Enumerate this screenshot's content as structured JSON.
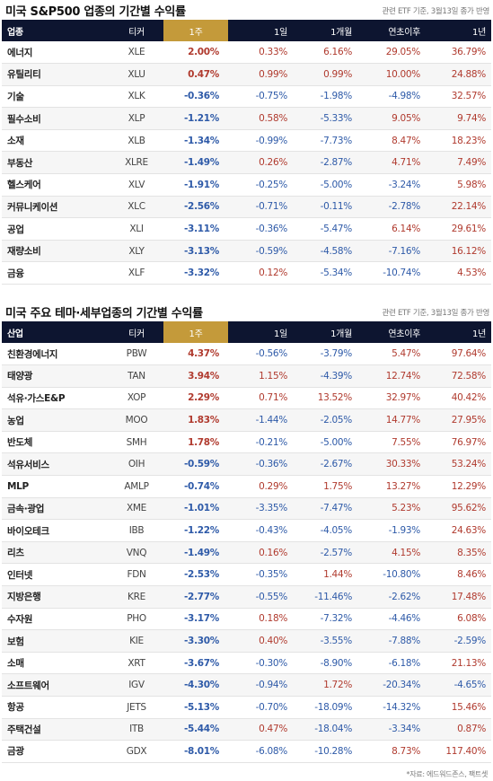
{
  "sections": [
    {
      "title": "미국 S&P500 업종의 기간별 수익률",
      "note": "관련 ETF 기준, 3월13일 종가 반영",
      "headers": {
        "name": "업종",
        "ticker": "티커",
        "week": "1주",
        "day": "1일",
        "month": "1개월",
        "ytd": "연초이후",
        "year": "1년"
      },
      "rows": [
        {
          "name": "에너지",
          "ticker": "XLE",
          "week": "2.00%",
          "day": "0.33%",
          "month": "6.16%",
          "ytd": "29.05%",
          "year": "36.79%"
        },
        {
          "name": "유틸리티",
          "ticker": "XLU",
          "week": "0.47%",
          "day": "0.99%",
          "month": "0.99%",
          "ytd": "10.00%",
          "year": "24.88%"
        },
        {
          "name": "기술",
          "ticker": "XLK",
          "week": "-0.36%",
          "day": "-0.75%",
          "month": "-1.98%",
          "ytd": "-4.98%",
          "year": "32.57%"
        },
        {
          "name": "필수소비",
          "ticker": "XLP",
          "week": "-1.21%",
          "day": "0.58%",
          "month": "-5.33%",
          "ytd": "9.05%",
          "year": "9.74%"
        },
        {
          "name": "소재",
          "ticker": "XLB",
          "week": "-1.34%",
          "day": "-0.99%",
          "month": "-7.73%",
          "ytd": "8.47%",
          "year": "18.23%"
        },
        {
          "name": "부동산",
          "ticker": "XLRE",
          "week": "-1.49%",
          "day": "0.26%",
          "month": "-2.87%",
          "ytd": "4.71%",
          "year": "7.49%"
        },
        {
          "name": "헬스케어",
          "ticker": "XLV",
          "week": "-1.91%",
          "day": "-0.25%",
          "month": "-5.00%",
          "ytd": "-3.24%",
          "year": "5.98%"
        },
        {
          "name": "커뮤니케이션",
          "ticker": "XLC",
          "week": "-2.56%",
          "day": "-0.71%",
          "month": "-0.11%",
          "ytd": "-2.78%",
          "year": "22.14%"
        },
        {
          "name": "공업",
          "ticker": "XLI",
          "week": "-3.11%",
          "day": "-0.36%",
          "month": "-5.47%",
          "ytd": "6.14%",
          "year": "29.61%"
        },
        {
          "name": "재량소비",
          "ticker": "XLY",
          "week": "-3.13%",
          "day": "-0.59%",
          "month": "-4.58%",
          "ytd": "-7.16%",
          "year": "16.12%"
        },
        {
          "name": "금융",
          "ticker": "XLF",
          "week": "-3.32%",
          "day": "0.12%",
          "month": "-5.34%",
          "ytd": "-10.74%",
          "year": "4.53%"
        }
      ]
    },
    {
      "title": "미국 주요 테마·세부업종의 기간별 수익률",
      "note": "관련 ETF 기준, 3월13일 종가 반영",
      "headers": {
        "name": "산업",
        "ticker": "티커",
        "week": "1주",
        "day": "1일",
        "month": "1개월",
        "ytd": "연초이후",
        "year": "1년"
      },
      "rows": [
        {
          "name": "친환경에너지",
          "ticker": "PBW",
          "week": "4.37%",
          "day": "-0.56%",
          "month": "-3.79%",
          "ytd": "5.47%",
          "year": "97.64%"
        },
        {
          "name": "태양광",
          "ticker": "TAN",
          "week": "3.94%",
          "day": "1.15%",
          "month": "-4.39%",
          "ytd": "12.74%",
          "year": "72.58%"
        },
        {
          "name": "석유·가스E&P",
          "ticker": "XOP",
          "week": "2.29%",
          "day": "0.71%",
          "month": "13.52%",
          "ytd": "32.97%",
          "year": "40.42%"
        },
        {
          "name": "농업",
          "ticker": "MOO",
          "week": "1.83%",
          "day": "-1.44%",
          "month": "-2.05%",
          "ytd": "14.77%",
          "year": "27.95%"
        },
        {
          "name": "반도체",
          "ticker": "SMH",
          "week": "1.78%",
          "day": "-0.21%",
          "month": "-5.00%",
          "ytd": "7.55%",
          "year": "76.97%"
        },
        {
          "name": "석유서비스",
          "ticker": "OIH",
          "week": "-0.59%",
          "day": "-0.36%",
          "month": "-2.67%",
          "ytd": "30.33%",
          "year": "53.24%"
        },
        {
          "name": "MLP",
          "ticker": "AMLP",
          "week": "-0.74%",
          "day": "0.29%",
          "month": "1.75%",
          "ytd": "13.27%",
          "year": "12.29%"
        },
        {
          "name": "금속·광업",
          "ticker": "XME",
          "week": "-1.01%",
          "day": "-3.35%",
          "month": "-7.47%",
          "ytd": "5.23%",
          "year": "95.62%"
        },
        {
          "name": "바이오테크",
          "ticker": "IBB",
          "week": "-1.22%",
          "day": "-0.43%",
          "month": "-4.05%",
          "ytd": "-1.93%",
          "year": "24.63%"
        },
        {
          "name": "리츠",
          "ticker": "VNQ",
          "week": "-1.49%",
          "day": "0.16%",
          "month": "-2.57%",
          "ytd": "4.15%",
          "year": "8.35%"
        },
        {
          "name": "인터넷",
          "ticker": "FDN",
          "week": "-2.53%",
          "day": "-0.35%",
          "month": "1.44%",
          "ytd": "-10.80%",
          "year": "8.46%"
        },
        {
          "name": "지방은행",
          "ticker": "KRE",
          "week": "-2.77%",
          "day": "-0.55%",
          "month": "-11.46%",
          "ytd": "-2.62%",
          "year": "17.48%"
        },
        {
          "name": "수자원",
          "ticker": "PHO",
          "week": "-3.17%",
          "day": "0.18%",
          "month": "-7.32%",
          "ytd": "-4.46%",
          "year": "6.08%"
        },
        {
          "name": "보험",
          "ticker": "KIE",
          "week": "-3.30%",
          "day": "0.40%",
          "month": "-3.55%",
          "ytd": "-7.88%",
          "year": "-2.59%"
        },
        {
          "name": "소매",
          "ticker": "XRT",
          "week": "-3.67%",
          "day": "-0.30%",
          "month": "-8.90%",
          "ytd": "-6.18%",
          "year": "21.13%"
        },
        {
          "name": "소프트웨어",
          "ticker": "IGV",
          "week": "-4.30%",
          "day": "-0.94%",
          "month": "1.72%",
          "ytd": "-20.34%",
          "year": "-4.65%"
        },
        {
          "name": "항공",
          "ticker": "JETS",
          "week": "-5.13%",
          "day": "-0.70%",
          "month": "-18.09%",
          "ytd": "-14.32%",
          "year": "15.46%"
        },
        {
          "name": "주택건설",
          "ticker": "ITB",
          "week": "-5.44%",
          "day": "0.47%",
          "month": "-18.04%",
          "ytd": "-3.34%",
          "year": "0.87%"
        },
        {
          "name": "금광",
          "ticker": "GDX",
          "week": "-8.01%",
          "day": "-6.08%",
          "month": "-10.28%",
          "ytd": "8.73%",
          "year": "117.40%"
        }
      ]
    }
  ],
  "source": "*자료: 에드워드존스, 팩트셋",
  "colors": {
    "header_bg": "#0d1530",
    "week_header_bg": "#c49a3a",
    "positive": "#b03a2e",
    "negative": "#2e5aa8"
  }
}
